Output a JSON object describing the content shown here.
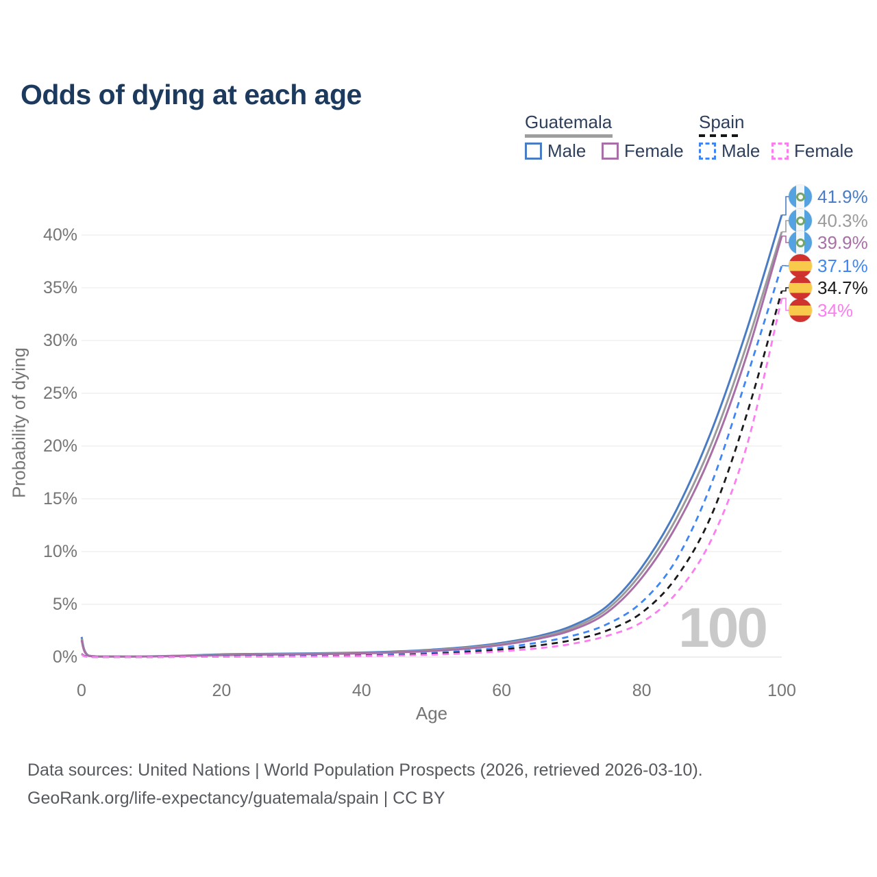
{
  "title": "Odds of dying at each age",
  "legend": {
    "groups": [
      {
        "label": "Guatemala",
        "line_style": "solid",
        "underline_color": "#9e9e9e",
        "items": [
          {
            "label": "Male",
            "color": "#4a7cc4"
          },
          {
            "label": "Female",
            "color": "#a86fa6"
          }
        ]
      },
      {
        "label": "Spain",
        "line_style": "dashed",
        "underline_color": "#161616",
        "items": [
          {
            "label": "Male",
            "color": "#3f86f2"
          },
          {
            "label": "Female",
            "color": "#fb7df0"
          }
        ]
      }
    ]
  },
  "axes": {
    "y": {
      "label": "Probability of dying",
      "ticks": [
        "0%",
        "5%",
        "10%",
        "15%",
        "20%",
        "25%",
        "30%",
        "35%",
        "40%"
      ]
    },
    "x": {
      "label": "Age",
      "ticks": [
        "0",
        "20",
        "40",
        "60",
        "80",
        "100"
      ]
    }
  },
  "watermark": "100",
  "end_labels": [
    {
      "flag": "guatemala",
      "text": "41.9%",
      "color": "#4a7cc4"
    },
    {
      "flag": "guatemala",
      "text": "40.3%",
      "color": "#9b9b9b"
    },
    {
      "flag": "guatemala",
      "text": "39.9%",
      "color": "#a86fa6"
    },
    {
      "flag": "spain",
      "text": "37.1%",
      "color": "#3f86f2"
    },
    {
      "flag": "spain",
      "text": "34.7%",
      "color": "#1a1a1a"
    },
    {
      "flag": "spain",
      "text": "34%",
      "color": "#fb7df0"
    }
  ],
  "footer": {
    "line1": "Data sources: United Nations | World Population Prospects (2026, retrieved 2026-03-10).",
    "line2": "GeoRank.org/life-expectancy/guatemala/spain | CC BY"
  },
  "chart_data": {
    "type": "line",
    "title": "Odds of dying at each age",
    "xlabel": "Age",
    "ylabel": "Probability of dying",
    "xlim": [
      0,
      100
    ],
    "ylim_pct": [
      0,
      43
    ],
    "grid": "horizontal",
    "legend_position": "top-right",
    "x_ages": [
      0,
      1,
      5,
      10,
      15,
      20,
      25,
      30,
      35,
      40,
      45,
      50,
      55,
      60,
      65,
      70,
      75,
      80,
      85,
      90,
      95,
      100
    ],
    "series": [
      {
        "name": "Guatemala Male",
        "country": "Guatemala",
        "sex": "male",
        "color": "#4a7cc4",
        "dash": "solid",
        "end_value_pct": 41.9,
        "values_pct": [
          1.9,
          0.15,
          0.06,
          0.07,
          0.15,
          0.26,
          0.3,
          0.33,
          0.37,
          0.43,
          0.53,
          0.7,
          0.95,
          1.35,
          1.95,
          2.95,
          4.8,
          8.5,
          14.0,
          21.5,
          31.0,
          41.9
        ]
      },
      {
        "name": "Guatemala Both sexes",
        "country": "Guatemala",
        "sex": "both",
        "color": "#9b9b9b",
        "dash": "solid",
        "end_value_pct": 40.3,
        "values_pct": [
          1.75,
          0.14,
          0.055,
          0.065,
          0.13,
          0.22,
          0.26,
          0.29,
          0.33,
          0.39,
          0.48,
          0.64,
          0.88,
          1.25,
          1.82,
          2.75,
          4.5,
          8.0,
          13.2,
          20.3,
          29.6,
          40.3
        ]
      },
      {
        "name": "Guatemala Female",
        "country": "Guatemala",
        "sex": "female",
        "color": "#a86fa6",
        "dash": "solid",
        "end_value_pct": 39.9,
        "values_pct": [
          1.6,
          0.12,
          0.05,
          0.06,
          0.11,
          0.18,
          0.22,
          0.25,
          0.29,
          0.35,
          0.44,
          0.58,
          0.8,
          1.15,
          1.7,
          2.55,
          4.2,
          7.5,
          12.5,
          19.4,
          28.6,
          39.9
        ]
      },
      {
        "name": "Spain Male",
        "country": "Spain",
        "sex": "male",
        "color": "#3f86f2",
        "dash": "dashed",
        "end_value_pct": 37.1,
        "values_pct": [
          0.3,
          0.03,
          0.01,
          0.012,
          0.035,
          0.06,
          0.08,
          0.09,
          0.12,
          0.16,
          0.24,
          0.38,
          0.6,
          0.9,
          1.35,
          2.0,
          3.1,
          5.2,
          9.3,
          16.5,
          26.5,
          37.1
        ]
      },
      {
        "name": "Spain Both sexes",
        "country": "Spain",
        "sex": "both",
        "color": "#1a1a1a",
        "dash": "dashed",
        "end_value_pct": 34.7,
        "values_pct": [
          0.28,
          0.025,
          0.009,
          0.01,
          0.025,
          0.045,
          0.06,
          0.07,
          0.09,
          0.13,
          0.19,
          0.3,
          0.47,
          0.72,
          1.08,
          1.6,
          2.5,
          4.2,
          7.6,
          13.5,
          23.0,
          34.7
        ]
      },
      {
        "name": "Spain Female",
        "country": "Spain",
        "sex": "female",
        "color": "#fb7df0",
        "dash": "dashed",
        "end_value_pct": 34.0,
        "values_pct": [
          0.25,
          0.02,
          0.008,
          0.009,
          0.018,
          0.03,
          0.04,
          0.05,
          0.07,
          0.1,
          0.15,
          0.23,
          0.36,
          0.55,
          0.82,
          1.25,
          2.0,
          3.3,
          6.1,
          11.2,
          20.0,
          34.0
        ]
      }
    ]
  }
}
